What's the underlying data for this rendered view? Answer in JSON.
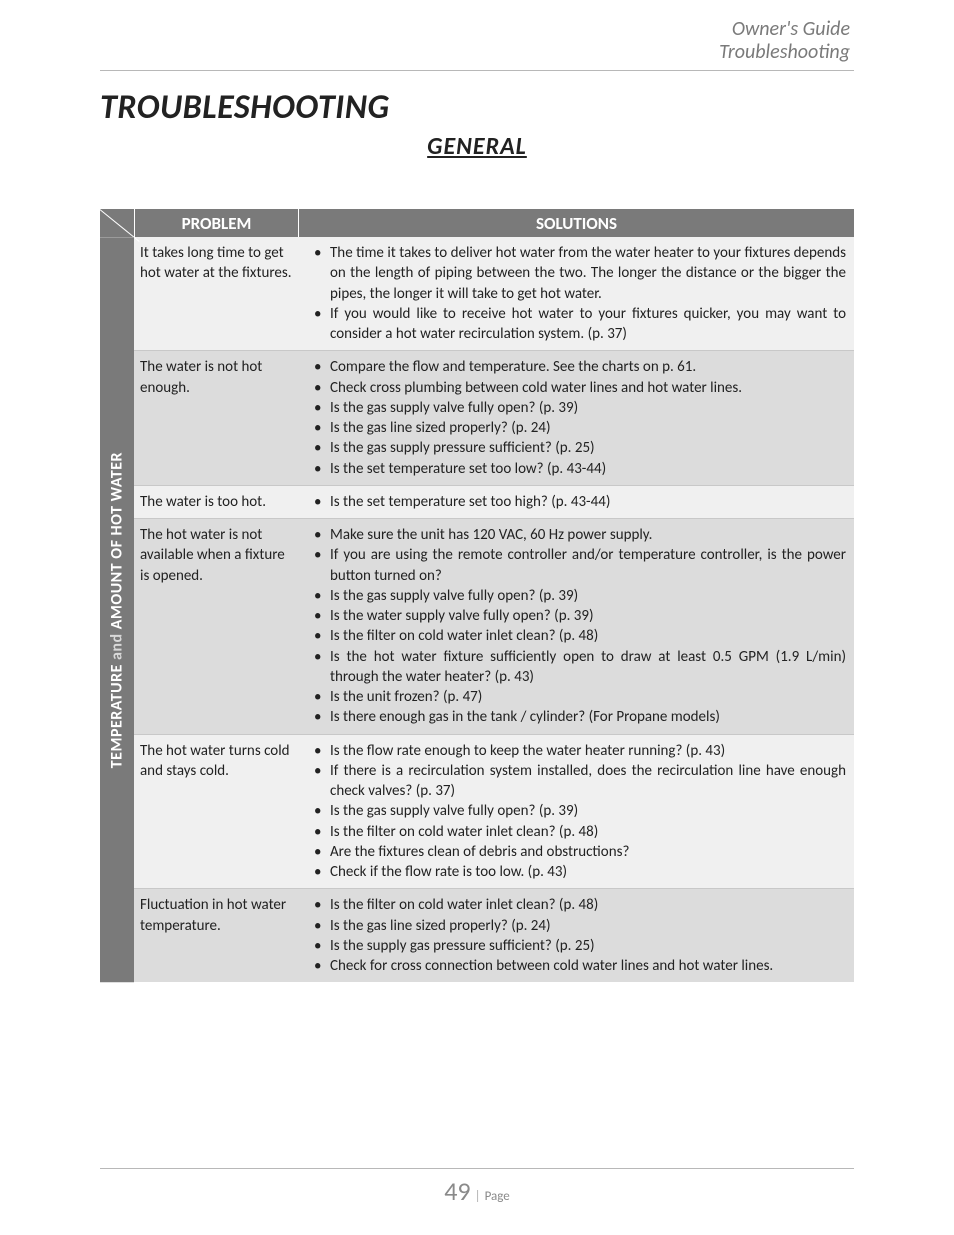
{
  "header": {
    "line1": "Owner's Guide",
    "line2": "Troubleshooting"
  },
  "title": "TROUBLESHOOTING",
  "subtitle": "GENERAL",
  "table": {
    "col_problem": "PROBLEM",
    "col_solutions": "SOLUTIONS",
    "category_label_a": "TEMPERATURE",
    "category_label_mid": " and ",
    "category_label_b": "AMOUNT OF HOT WATER",
    "rows": [
      {
        "problem": "It takes long time to get hot water at the fixtures.",
        "solutions": [
          "The time it takes to deliver hot water from the water heater to your fixtures depends on the length of piping between the two.  The longer the distance or the bigger the pipes, the longer it will take to get hot water.",
          "If you would like to receive hot water to your fixtures quicker, you may want to consider a hot water recirculation system. (p. 37)"
        ]
      },
      {
        "problem": "The water is not hot enough.",
        "solutions": [
          "Compare the flow and temperature.  See the charts on p. 61.",
          "Check cross plumbing between cold water lines and hot water lines.",
          "Is the gas supply valve fully open? (p. 39)",
          "Is the gas line sized properly? (p. 24)",
          "Is the gas supply pressure sufficient? (p. 25)",
          "Is the set temperature set too low? (p. 43-44)"
        ]
      },
      {
        "problem": "The water is too hot.",
        "solutions": [
          "Is the set temperature set too high? (p. 43-44)"
        ]
      },
      {
        "problem": "The hot water is not available when a fixture is opened.",
        "solutions": [
          "Make sure the unit has 120 VAC, 60 Hz power supply.",
          "If you are using the remote controller and/or temperature controller, is the power button turned on?",
          "Is the gas supply valve fully open? (p. 39)",
          "Is the water supply valve fully open? (p. 39)",
          "Is the filter on cold water inlet clean? (p. 48)",
          "Is the hot water fixture sufficiently open to draw at least 0.5 GPM (1.9 L/min) through the water heater? (p. 43)",
          "Is the unit frozen? (p. 47)",
          "Is there enough gas in the tank / cylinder? (For Propane models)"
        ]
      },
      {
        "problem": "The hot water turns cold and stays cold.",
        "solutions": [
          "Is the flow rate enough to keep the water heater running? (p. 43)",
          "If there is a recirculation system installed, does the recirculation line have enough check valves? (p. 37)",
          "Is the gas supply valve fully open? (p. 39)",
          "Is the filter on cold water inlet clean? (p. 48)",
          "Are the fixtures clean of debris and obstructions?",
          "Check if the flow rate is too low. (p. 43)"
        ]
      },
      {
        "problem": "Fluctuation in hot water temperature.",
        "solutions": [
          "Is the filter on cold water inlet clean? (p. 48)",
          "Is the gas line sized properly? (p. 24)",
          "Is the supply gas pressure sufficient? (p. 25)",
          "Check for cross connection between cold water lines and hot water lines."
        ]
      }
    ]
  },
  "footer": {
    "page_number": "49",
    "page_label": "Page"
  }
}
